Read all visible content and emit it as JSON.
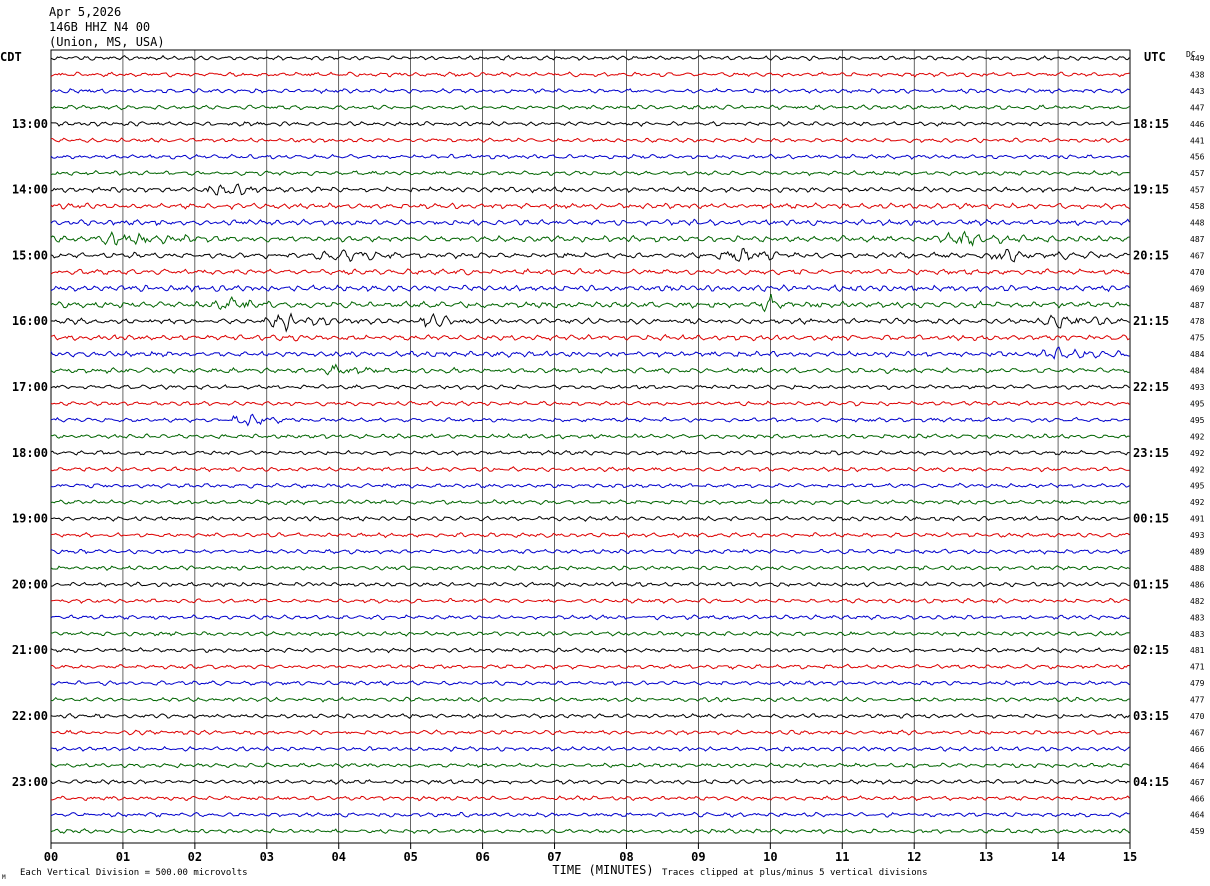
{
  "header": {
    "date": "Apr 5,2026",
    "station": "146B HHZ N4 00",
    "location": "(Union, MS, USA)"
  },
  "left_axis_title": "CDT",
  "right_axis_title": "UTC",
  "dc_title": "DC",
  "footer": {
    "scale_note": "Each Vertical Division =  500.00 microvolts",
    "clip_note": "Traces clipped at plus/minus 5 vertical divisions",
    "corner_mark": "M"
  },
  "colors": {
    "trace_cycle": [
      "#000000",
      "#dd0000",
      "#0000cc",
      "#006400"
    ],
    "grid": "#000000",
    "background": "#ffffff"
  },
  "chart_data": {
    "type": "line",
    "subtype": "helicorder",
    "xlabel": "TIME (MINUTES)",
    "xlim": [
      0,
      15
    ],
    "x_ticks": [
      "00",
      "01",
      "02",
      "03",
      "04",
      "05",
      "06",
      "07",
      "08",
      "09",
      "10",
      "11",
      "12",
      "13",
      "14",
      "15"
    ],
    "rows_per_hour": 4,
    "minutes_per_row": 15,
    "row_count": 48,
    "left_time_labels": [
      "13:00",
      "14:00",
      "15:00",
      "16:00",
      "17:00",
      "18:00",
      "19:00",
      "20:00",
      "21:00",
      "22:00",
      "23:00"
    ],
    "right_time_labels": [
      "18:15",
      "19:15",
      "20:15",
      "21:15",
      "22:15",
      "23:15",
      "00:15",
      "01:15",
      "02:15",
      "03:15",
      "04:15"
    ],
    "label_start_row": 4,
    "dc_offsets": [
      449,
      438,
      443,
      447,
      446,
      441,
      456,
      457,
      457,
      458,
      448,
      487,
      467,
      470,
      469,
      487,
      478,
      475,
      484,
      484,
      493,
      495,
      495,
      492,
      492,
      492,
      495,
      492,
      491,
      493,
      489,
      488,
      486,
      482,
      483,
      483,
      481,
      471,
      479,
      477,
      470,
      467,
      466,
      464,
      467,
      466,
      464,
      459
    ],
    "row_amplitude": [
      1,
      1,
      1,
      1,
      1,
      1,
      1,
      1,
      1.2,
      1.3,
      1.3,
      1.4,
      1.3,
      1.3,
      1.4,
      1.4,
      1.3,
      1.3,
      1.3,
      1.2,
      1,
      1,
      1,
      1,
      1,
      1,
      1,
      1,
      1,
      1,
      1,
      1,
      1,
      1,
      1,
      1,
      1,
      1,
      1,
      1,
      1,
      1,
      1,
      1,
      1,
      1,
      1,
      1
    ],
    "events": [
      {
        "row": 8,
        "minute": 2.3,
        "duration": 0.6,
        "amplitude": 1.0
      },
      {
        "row": 11,
        "minute": 1.0,
        "duration": 1.0,
        "amplitude": 0.6
      },
      {
        "row": 11,
        "minute": 12.6,
        "duration": 0.8,
        "amplitude": 0.7
      },
      {
        "row": 12,
        "minute": 4.0,
        "duration": 0.8,
        "amplitude": 0.6
      },
      {
        "row": 12,
        "minute": 9.5,
        "duration": 0.5,
        "amplitude": 0.9
      },
      {
        "row": 12,
        "minute": 13.3,
        "duration": 0.8,
        "amplitude": 0.6
      },
      {
        "row": 15,
        "minute": 2.5,
        "duration": 0.5,
        "amplitude": 0.6
      },
      {
        "row": 15,
        "minute": 10.0,
        "duration": 0.5,
        "amplitude": 0.8
      },
      {
        "row": 16,
        "minute": 3.3,
        "duration": 0.8,
        "amplitude": 0.9
      },
      {
        "row": 16,
        "minute": 5.3,
        "duration": 0.4,
        "amplitude": 0.8
      },
      {
        "row": 16,
        "minute": 14.0,
        "duration": 0.6,
        "amplitude": 0.9
      },
      {
        "row": 18,
        "minute": 14.0,
        "duration": 0.6,
        "amplitude": 0.6
      },
      {
        "row": 19,
        "minute": 4.0,
        "duration": 0.5,
        "amplitude": 0.6
      },
      {
        "row": 22,
        "minute": 2.7,
        "duration": 0.4,
        "amplitude": 1.0
      }
    ]
  }
}
